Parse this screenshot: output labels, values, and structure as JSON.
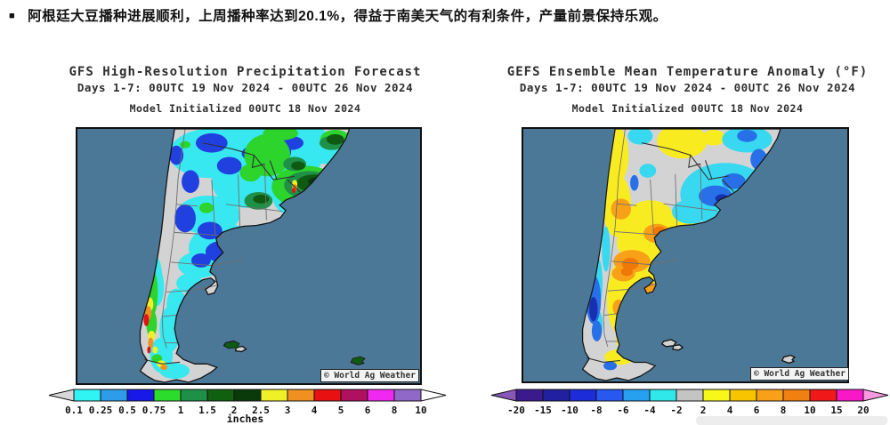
{
  "headline": {
    "bullet": "■",
    "text": "阿根廷大豆播种进展顺利，上周播种率达到20.1%，得益于南美天气的有利条件，产量前景保持乐观。"
  },
  "palette": {
    "ocean": "#4C7897",
    "land": "#D3D3D3",
    "coast": "#141414",
    "province_border": "#6E6E6E",
    "country_border": "#303030",
    "watermark_bg": "#F4F4F4"
  },
  "precip": {
    "title": "GFS High-Resolution Precipitation Forecast",
    "subtitle": "Days 1-7: 00UTC 19 Nov 2024 - 00UTC 26 Nov 2024",
    "init_line": "Model Initialized 00UTC 18 Nov 2024",
    "watermark": "© World Ag Weather",
    "colorbar": {
      "unit": "inches",
      "labels": [
        "0.1",
        "0.25",
        "0.5",
        "0.75",
        "1",
        "1.5",
        "2",
        "2.5",
        "3",
        "4",
        "5",
        "6",
        "8",
        "10"
      ],
      "cells": [
        "#30F4F4",
        "#2E9CE8",
        "#1818E8",
        "#2CDC2C",
        "#1E9048",
        "#10600F",
        "#0A3A0A",
        "#F0F028",
        "#F09020",
        "#E81010",
        "#B01060",
        "#F028F0",
        "#9068C8"
      ],
      "left_arrow": "#D8D8D8",
      "right_arrow": "#FFFFFF"
    },
    "layers": [
      {
        "color": "#38E8F0",
        "blobs": [
          [
            150,
            28,
            46,
            28
          ],
          [
            192,
            60,
            40,
            30
          ],
          [
            232,
            36,
            44,
            28
          ],
          [
            250,
            22,
            24,
            14
          ],
          [
            283,
            22,
            36,
            18
          ],
          [
            255,
            78,
            34,
            24
          ],
          [
            148,
            98,
            36,
            22
          ],
          [
            166,
            136,
            40,
            28
          ],
          [
            138,
            155,
            24,
            15
          ],
          [
            127,
            176,
            15,
            11
          ],
          [
            112,
            200,
            11,
            18
          ],
          [
            105,
            228,
            12,
            26
          ],
          [
            95,
            258,
            13,
            20
          ],
          [
            110,
            276,
            17,
            9
          ],
          [
            190,
            8,
            30,
            13
          ],
          [
            260,
            6,
            22,
            9
          ],
          [
            88,
            170,
            8,
            25
          ],
          [
            90,
            180,
            8,
            22
          ]
        ]
      },
      {
        "color": "#2040E0",
        "blobs": [
          [
            152,
            16,
            18,
            11
          ],
          [
            172,
            42,
            14,
            10
          ],
          [
            198,
            28,
            12,
            8
          ],
          [
            242,
            16,
            14,
            8
          ],
          [
            150,
            116,
            14,
            10
          ],
          [
            162,
            140,
            17,
            12
          ],
          [
            140,
            150,
            11,
            8
          ],
          [
            122,
            102,
            12,
            16
          ],
          [
            253,
            62,
            10,
            8
          ],
          [
            233,
            26,
            9,
            11
          ],
          [
            128,
            60,
            10,
            13
          ],
          [
            112,
            30,
            8,
            11
          ],
          [
            80,
            158,
            7,
            10
          ]
        ]
      },
      {
        "color": "#2CD42C",
        "blobs": [
          [
            215,
            30,
            26,
            24
          ],
          [
            258,
            66,
            38,
            24
          ],
          [
            292,
            12,
            17,
            11
          ],
          [
            230,
            5,
            20,
            8
          ],
          [
            196,
            50,
            12,
            10
          ],
          [
            186,
            142,
            20,
            13
          ],
          [
            146,
            90,
            8,
            6
          ],
          [
            84,
            186,
            7,
            28
          ],
          [
            84,
            222,
            6,
            16
          ],
          [
            90,
            262,
            6,
            5
          ],
          [
            122,
            18,
            6,
            4
          ]
        ]
      },
      {
        "color": "#1E9048",
        "blobs": [
          [
            262,
            64,
            28,
            16
          ],
          [
            288,
            16,
            14,
            8
          ],
          [
            246,
            40,
            13,
            8
          ],
          [
            205,
            82,
            16,
            10
          ],
          [
            188,
            146,
            12,
            8
          ]
        ]
      },
      {
        "color": "#0F5A12",
        "blobs": [
          [
            268,
            62,
            20,
            10
          ],
          [
            292,
            12,
            10,
            6
          ],
          [
            208,
            80,
            9,
            5
          ],
          [
            176,
            247,
            9,
            4
          ],
          [
            318,
            264,
            7,
            4
          ],
          [
            250,
            42,
            8,
            5
          ]
        ]
      },
      {
        "color": "#0A3A0A",
        "blobs": [
          [
            272,
            60,
            11,
            5
          ]
        ]
      },
      {
        "color": "#F0F028",
        "blobs": [
          [
            82,
            200,
            4,
            8
          ],
          [
            84,
            236,
            4,
            6
          ],
          [
            95,
            268,
            5,
            4
          ],
          [
            246,
            63,
            3,
            5
          ],
          [
            88,
            252,
            3,
            4
          ]
        ]
      },
      {
        "color": "#F09020",
        "blobs": [
          [
            80,
            210,
            4,
            8
          ],
          [
            83,
            244,
            3,
            6
          ],
          [
            246,
            67,
            3,
            4
          ],
          [
            98,
            272,
            4,
            3
          ]
        ]
      },
      {
        "color": "#E81010",
        "blobs": [
          [
            78,
            218,
            3,
            7
          ],
          [
            81,
            252,
            2,
            4
          ],
          [
            245,
            70,
            2,
            3
          ]
        ]
      }
    ]
  },
  "anomaly": {
    "title": "GEFS Ensemble Mean Temperature Anomaly (°F)",
    "subtitle": "Days 1-7: 00UTC 19 Nov 2024 - 00UTC 26 Nov 2024",
    "init_line": "Model Initialized 00UTC 18 Nov 2024",
    "watermark": "© World Ag Weather",
    "colorbar": {
      "unit": "",
      "labels": [
        "-20",
        "-15",
        "-10",
        "-8",
        "-6",
        "-4",
        "-2",
        "2",
        "4",
        "6",
        "8",
        "10",
        "15",
        "20"
      ],
      "cells": [
        "#3A1A8C",
        "#2020A0",
        "#1C2CD8",
        "#2858F0",
        "#28A0F0",
        "#30E8E8",
        "#C4C4C4",
        "#F8F818",
        "#F8C400",
        "#F8A018",
        "#F08010",
        "#F01818",
        "#F818C8"
      ],
      "left_arrow": "#8858B8",
      "right_arrow": "#F898E0"
    },
    "layers": [
      {
        "color": "#F8EC20",
        "blobs": [
          [
            110,
            30,
            16,
            34
          ],
          [
            112,
            88,
            17,
            36
          ],
          [
            140,
            110,
            20,
            12
          ],
          [
            168,
            130,
            56,
            32
          ],
          [
            148,
            170,
            44,
            26
          ],
          [
            190,
            14,
            30,
            20
          ],
          [
            228,
            10,
            14,
            9
          ],
          [
            118,
            196,
            18,
            42
          ],
          [
            126,
            240,
            15,
            18
          ],
          [
            115,
            262,
            18,
            9
          ],
          [
            152,
            98,
            26,
            16
          ]
        ]
      },
      {
        "color": "#F8A018",
        "blobs": [
          [
            117,
            92,
            12,
            12
          ],
          [
            160,
            120,
            16,
            11
          ],
          [
            130,
            152,
            22,
            13
          ],
          [
            150,
            185,
            13,
            9
          ],
          [
            120,
            166,
            14,
            9
          ],
          [
            118,
            230,
            9,
            6
          ],
          [
            114,
            205,
            7,
            9
          ],
          [
            93,
            58,
            4,
            24
          ],
          [
            140,
            240,
            9,
            6
          ]
        ]
      },
      {
        "color": "#F07808",
        "blobs": [
          [
            163,
            118,
            8,
            6
          ],
          [
            128,
            155,
            10,
            7
          ],
          [
            124,
            164,
            7,
            5
          ]
        ]
      },
      {
        "color": "#E81010",
        "blobs": [
          [
            92,
            74,
            3,
            8
          ]
        ]
      },
      {
        "color": "#38D8F0",
        "blobs": [
          [
            242,
            75,
            54,
            36
          ],
          [
            268,
            12,
            30,
            15
          ],
          [
            200,
            95,
            22,
            14
          ],
          [
            149,
            48,
            10,
            8
          ],
          [
            140,
            8,
            15,
            10
          ],
          [
            99,
            138,
            5,
            26
          ],
          [
            88,
            176,
            7,
            30
          ],
          [
            82,
            160,
            6,
            14
          ],
          [
            90,
            225,
            5,
            16
          ],
          [
            292,
            48,
            16,
            20
          ]
        ]
      },
      {
        "color": "#2870E8",
        "blobs": [
          [
            230,
            77,
            20,
            12
          ],
          [
            268,
            8,
            12,
            7
          ],
          [
            252,
            60,
            14,
            9
          ],
          [
            133,
            62,
            5,
            9
          ],
          [
            84,
            196,
            9,
            28
          ],
          [
            88,
            232,
            6,
            12
          ],
          [
            282,
            35,
            10,
            12
          ],
          [
            104,
            272,
            8,
            5
          ]
        ]
      },
      {
        "color": "#1830B0",
        "blobs": [
          [
            84,
            207,
            5,
            14
          ],
          [
            238,
            80,
            8,
            5
          ]
        ]
      }
    ]
  },
  "chart_data": [
    {
      "type": "heatmap",
      "title": "GFS High-Resolution Precipitation Forecast",
      "subtitle": "Days 1-7: 00UTC 19 Nov 2024 - 00UTC 26 Nov 2024",
      "init": "Model Initialized 00UTC 18 Nov 2024",
      "unit": "inches",
      "scale_ticks": [
        0.1,
        0.25,
        0.5,
        0.75,
        1,
        1.5,
        2,
        2.5,
        3,
        4,
        5,
        6,
        8,
        10
      ],
      "legend_position": "bottom"
    },
    {
      "type": "heatmap",
      "title": "GEFS Ensemble Mean Temperature Anomaly (°F)",
      "subtitle": "Days 1-7: 00UTC 19 Nov 2024 - 00UTC 26 Nov 2024",
      "init": "Model Initialized 00UTC 18 Nov 2024",
      "unit": "°F",
      "scale_ticks": [
        -20,
        -15,
        -10,
        -8,
        -6,
        -4,
        -2,
        2,
        4,
        6,
        8,
        10,
        15,
        20
      ],
      "legend_position": "bottom"
    }
  ]
}
